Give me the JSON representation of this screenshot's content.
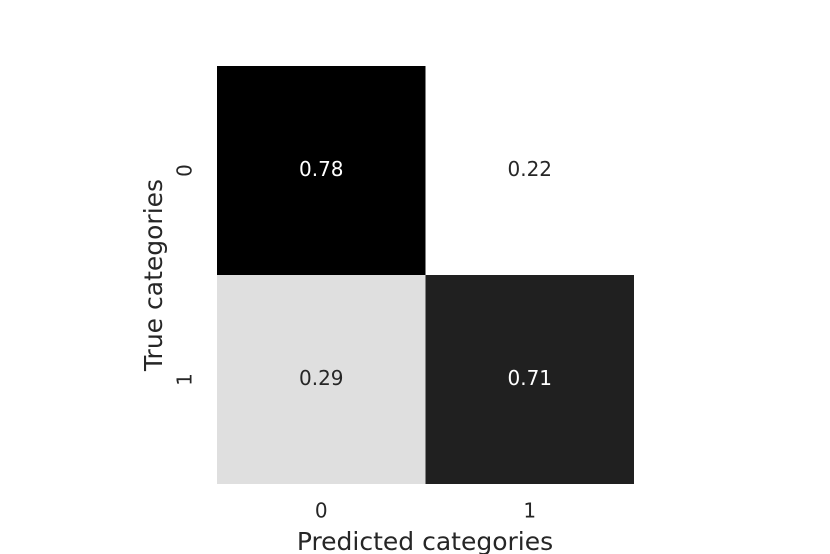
{
  "chart_data": {
    "type": "heatmap",
    "xlabel": "Predicted categories",
    "ylabel": "True categories",
    "x_categories": [
      "0",
      "1"
    ],
    "y_categories": [
      "0",
      "1"
    ],
    "values": [
      [
        0.78,
        0.22
      ],
      [
        0.29,
        0.71
      ]
    ],
    "low_color": "#ffffff",
    "high_color": "#000000"
  }
}
